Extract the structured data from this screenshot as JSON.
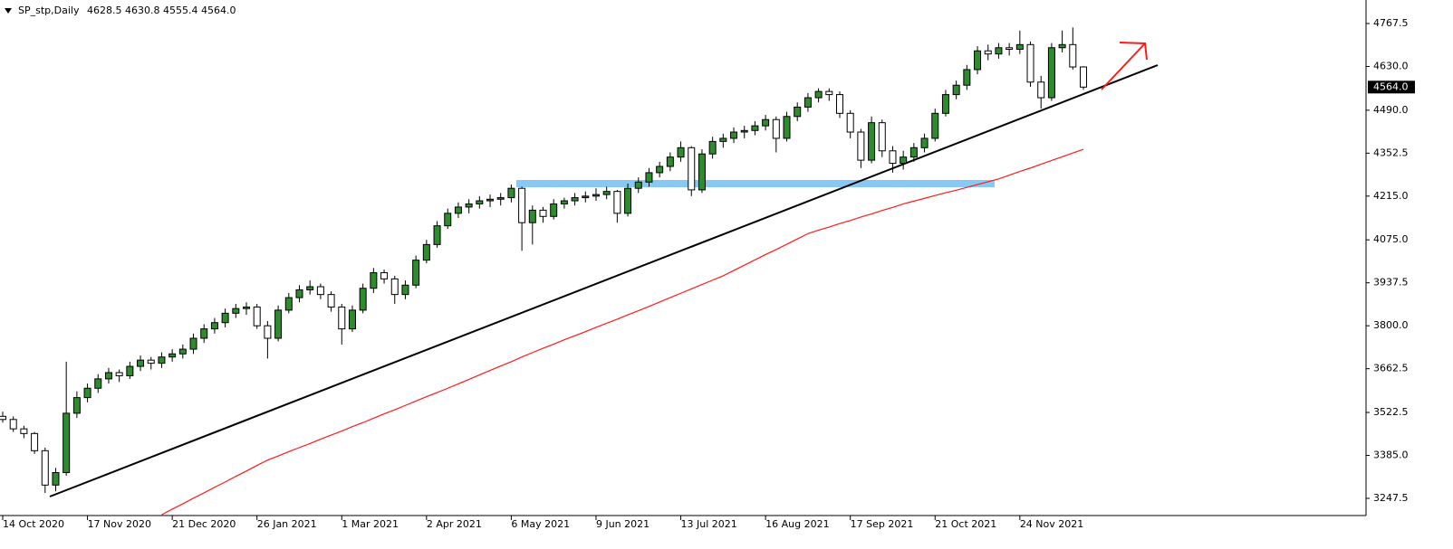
{
  "chart_data": {
    "type": "candlestick",
    "title": "SP_stp,Daily",
    "subtitle": "4628.5 4630.8 4555.4 4564.0",
    "categories": [
      "14 Oct 2020",
      "17 Nov 2020",
      "21 Dec 2020",
      "26 Jan 2021",
      "1 Mar 2021",
      "2 Apr 2021",
      "6 May 2021",
      "9 Jun 2021",
      "13 Jul 2021",
      "16 Aug 2021",
      "17 Sep 2021",
      "21 Oct 2021",
      "24 Nov 2021"
    ],
    "ylim": [
      3192.5,
      4842.8
    ],
    "yticks": [
      {
        "value": 4767.5,
        "label": "4767.5"
      },
      {
        "value": 4630,
        "label": "4630.0"
      },
      {
        "value": 4490,
        "label": "4490.0"
      },
      {
        "value": 4352.5,
        "label": "4352.5"
      },
      {
        "value": 4215,
        "label": "4215.0"
      },
      {
        "value": 4075,
        "label": "4075.0"
      },
      {
        "value": 3937.5,
        "label": "3937.5"
      },
      {
        "value": 3800,
        "label": "3800.0"
      },
      {
        "value": 3662.5,
        "label": "3662.5"
      },
      {
        "value": 3522.5,
        "label": "3522.5"
      },
      {
        "value": 3385,
        "label": "3385.0"
      },
      {
        "value": 3247.5,
        "label": "3247.5"
      }
    ],
    "last_price": {
      "value": 4564,
      "label": "4564.0"
    },
    "up_color": "#2e8b2e",
    "down_color": "#ffffff",
    "ma_color": "#ff1a1a",
    "candles": [
      [
        3510,
        3525,
        3490,
        3500
      ],
      [
        3500,
        3510,
        3460,
        3470
      ],
      [
        3470,
        3480,
        3440,
        3455
      ],
      [
        3455,
        3460,
        3390,
        3400
      ],
      [
        3400,
        3410,
        3265,
        3290
      ],
      [
        3290,
        3345,
        3270,
        3330
      ],
      [
        3330,
        3685,
        3320,
        3520
      ],
      [
        3520,
        3590,
        3505,
        3570
      ],
      [
        3570,
        3615,
        3555,
        3600
      ],
      [
        3600,
        3645,
        3585,
        3630
      ],
      [
        3630,
        3665,
        3615,
        3650
      ],
      [
        3650,
        3660,
        3620,
        3640
      ],
      [
        3640,
        3685,
        3630,
        3670
      ],
      [
        3670,
        3705,
        3655,
        3690
      ],
      [
        3690,
        3700,
        3660,
        3680
      ],
      [
        3680,
        3715,
        3665,
        3700
      ],
      [
        3700,
        3725,
        3685,
        3710
      ],
      [
        3710,
        3740,
        3695,
        3725
      ],
      [
        3725,
        3775,
        3710,
        3760
      ],
      [
        3760,
        3805,
        3745,
        3790
      ],
      [
        3790,
        3825,
        3775,
        3810
      ],
      [
        3810,
        3855,
        3795,
        3840
      ],
      [
        3840,
        3870,
        3825,
        3855
      ],
      [
        3855,
        3875,
        3835,
        3860
      ],
      [
        3860,
        3870,
        3790,
        3800
      ],
      [
        3800,
        3815,
        3695,
        3760
      ],
      [
        3760,
        3865,
        3750,
        3850
      ],
      [
        3850,
        3905,
        3840,
        3890
      ],
      [
        3890,
        3930,
        3875,
        3915
      ],
      [
        3915,
        3945,
        3900,
        3925
      ],
      [
        3925,
        3935,
        3885,
        3900
      ],
      [
        3900,
        3910,
        3845,
        3860
      ],
      [
        3860,
        3870,
        3740,
        3790
      ],
      [
        3790,
        3865,
        3780,
        3850
      ],
      [
        3850,
        3935,
        3840,
        3920
      ],
      [
        3920,
        3985,
        3905,
        3970
      ],
      [
        3970,
        3980,
        3935,
        3950
      ],
      [
        3950,
        3960,
        3870,
        3900
      ],
      [
        3900,
        3945,
        3885,
        3930
      ],
      [
        3930,
        4025,
        3920,
        4010
      ],
      [
        4010,
        4075,
        4000,
        4060
      ],
      [
        4060,
        4135,
        4050,
        4120
      ],
      [
        4120,
        4175,
        4110,
        4160
      ],
      [
        4160,
        4195,
        4145,
        4180
      ],
      [
        4180,
        4205,
        4160,
        4190
      ],
      [
        4190,
        4215,
        4175,
        4200
      ],
      [
        4200,
        4220,
        4180,
        4205
      ],
      [
        4205,
        4225,
        4185,
        4210
      ],
      [
        4210,
        4252,
        4195,
        4240
      ],
      [
        4240,
        4245,
        4040,
        4130
      ],
      [
        4130,
        4185,
        4060,
        4170
      ],
      [
        4170,
        4180,
        4130,
        4150
      ],
      [
        4150,
        4205,
        4140,
        4190
      ],
      [
        4190,
        4210,
        4175,
        4200
      ],
      [
        4200,
        4225,
        4185,
        4210
      ],
      [
        4210,
        4230,
        4195,
        4215
      ],
      [
        4215,
        4240,
        4200,
        4220
      ],
      [
        4220,
        4245,
        4205,
        4230
      ],
      [
        4230,
        4235,
        4130,
        4160
      ],
      [
        4160,
        4255,
        4150,
        4240
      ],
      [
        4240,
        4275,
        4225,
        4260
      ],
      [
        4260,
        4305,
        4245,
        4290
      ],
      [
        4290,
        4325,
        4275,
        4310
      ],
      [
        4310,
        4355,
        4295,
        4340
      ],
      [
        4340,
        4390,
        4325,
        4370
      ],
      [
        4370,
        4375,
        4215,
        4235
      ],
      [
        4235,
        4365,
        4225,
        4350
      ],
      [
        4350,
        4405,
        4335,
        4390
      ],
      [
        4390,
        4415,
        4370,
        4400
      ],
      [
        4400,
        4435,
        4385,
        4420
      ],
      [
        4420,
        4440,
        4400,
        4425
      ],
      [
        4425,
        4455,
        4410,
        4440
      ],
      [
        4440,
        4475,
        4425,
        4460
      ],
      [
        4460,
        4470,
        4355,
        4400
      ],
      [
        4400,
        4485,
        4390,
        4470
      ],
      [
        4470,
        4515,
        4455,
        4500
      ],
      [
        4500,
        4545,
        4485,
        4530
      ],
      [
        4530,
        4560,
        4515,
        4550
      ],
      [
        4550,
        4560,
        4520,
        4540
      ],
      [
        4540,
        4550,
        4465,
        4480
      ],
      [
        4480,
        4490,
        4400,
        4420
      ],
      [
        4420,
        4430,
        4305,
        4330
      ],
      [
        4330,
        4470,
        4320,
        4450
      ],
      [
        4450,
        4460,
        4340,
        4360
      ],
      [
        4360,
        4375,
        4290,
        4320
      ],
      [
        4320,
        4360,
        4300,
        4340
      ],
      [
        4340,
        4385,
        4325,
        4370
      ],
      [
        4370,
        4415,
        4355,
        4400
      ],
      [
        4400,
        4495,
        4390,
        4480
      ],
      [
        4480,
        4555,
        4470,
        4540
      ],
      [
        4540,
        4585,
        4525,
        4570
      ],
      [
        4570,
        4635,
        4555,
        4620
      ],
      [
        4620,
        4695,
        4605,
        4680
      ],
      [
        4680,
        4700,
        4650,
        4670
      ],
      [
        4670,
        4705,
        4655,
        4690
      ],
      [
        4690,
        4705,
        4665,
        4685
      ],
      [
        4685,
        4745,
        4670,
        4700
      ],
      [
        4700,
        4710,
        4565,
        4580
      ],
      [
        4580,
        4600,
        4495,
        4530
      ],
      [
        4530,
        4705,
        4520,
        4690
      ],
      [
        4690,
        4745,
        4675,
        4700
      ],
      [
        4700,
        4755,
        4620,
        4628.5
      ],
      [
        4628.5,
        4630.8,
        4555.4,
        4564
      ]
    ],
    "ma": [
      null,
      null,
      null,
      null,
      null,
      null,
      null,
      null,
      null,
      null,
      null,
      null,
      null,
      null,
      null,
      3195,
      3213,
      3230,
      3248,
      3265,
      3283,
      3300,
      3318,
      3335,
      3353,
      3370,
      3383,
      3397,
      3410,
      3423,
      3437,
      3450,
      3463,
      3477,
      3490,
      3504,
      3518,
      3531,
      3545,
      3559,
      3573,
      3586,
      3600,
      3614,
      3628,
      3643,
      3657,
      3671,
      3685,
      3700,
      3714,
      3728,
      3741,
      3755,
      3768,
      3781,
      3795,
      3808,
      3821,
      3835,
      3848,
      3862,
      3876,
      3890,
      3904,
      3918,
      3932,
      3946,
      3960,
      3977,
      3994,
      4011,
      4028,
      4044,
      4061,
      4078,
      4095,
      4106,
      4116,
      4127,
      4137,
      4148,
      4158,
      4169,
      4179,
      4190,
      4199,
      4208,
      4217,
      4226,
      4234,
      4243,
      4252,
      4261,
      4270,
      4282,
      4294,
      4305,
      4317,
      4329,
      4341,
      4353,
      4365
    ]
  }
}
